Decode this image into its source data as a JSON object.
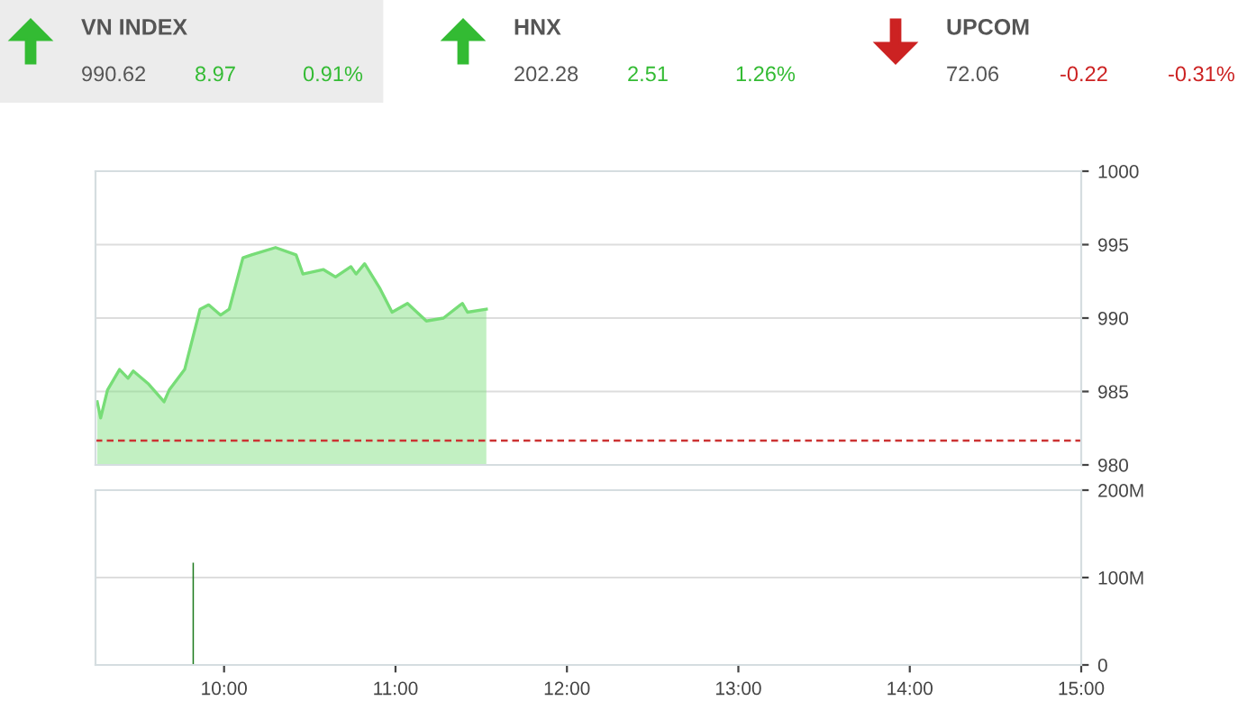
{
  "chart_data": [
    {
      "type": "other",
      "annotations": [
        "VN INDEX",
        "990.62",
        "8.97",
        "0.91%",
        "HNX",
        "202.28",
        "2.51",
        "1.26%",
        "UPCOM",
        "72.06",
        "-0.22",
        "-0.31%"
      ],
      "colors": [
        "#555555",
        "#555555",
        "#33bb33",
        "#33bb33",
        "#555555",
        "#555555",
        "#33bb33",
        "#33bb33",
        "#555555",
        "#555555",
        "#cc2222",
        "#cc2222"
      ]
    },
    {
      "type": "area",
      "tick_labels": "y",
      "grid": "y",
      "xlim": [
        9.25,
        15
      ],
      "ylim": [
        980,
        1000
      ],
      "yticks": [
        980,
        985,
        990,
        995,
        1000
      ],
      "ref_lines": [
        {
          "axis": "y",
          "value": 981.65,
          "color": "#cc3333",
          "line_style": "dashed"
        }
      ],
      "series": [
        {
          "color": "#77dd77",
          "x": [
            9.26,
            9.28,
            9.32,
            9.39,
            9.44,
            9.47,
            9.56,
            9.65,
            9.68,
            9.77,
            9.86,
            9.91,
            9.98,
            10.03,
            10.11,
            10.16,
            10.3,
            10.42,
            10.46,
            10.58,
            10.65,
            10.74,
            10.77,
            10.82,
            10.91,
            10.98,
            11.07,
            11.18,
            11.28,
            11.39,
            11.42,
            11.53
          ],
          "values": [
            984.3,
            983.2,
            985.1,
            986.5,
            985.9,
            986.4,
            985.5,
            984.3,
            985.1,
            986.5,
            990.6,
            990.9,
            990.2,
            990.6,
            994.1,
            994.3,
            994.8,
            994.3,
            993.0,
            993.3,
            992.8,
            993.5,
            993.0,
            993.7,
            992.0,
            990.4,
            991.0,
            989.8,
            990.0,
            991.0,
            990.4,
            990.6
          ]
        }
      ]
    },
    {
      "type": "bar",
      "grid": "y",
      "xlim": [
        9.25,
        15
      ],
      "ylim": [
        0,
        200
      ],
      "yticks": [
        0,
        {
          "value": 100,
          "label": "100M"
        },
        {
          "value": 200,
          "label": "200M"
        }
      ],
      "xticks": [
        {
          "value": 10,
          "label": "10:00"
        },
        {
          "value": 11,
          "label": "11:00"
        },
        {
          "value": 12,
          "label": "12:00"
        },
        {
          "value": 13,
          "label": "13:00"
        },
        {
          "value": 14,
          "label": "14:00"
        },
        {
          "value": 15,
          "label": "15:00"
        }
      ],
      "series": [
        {
          "color": "#1e7a1e",
          "x": [
            9.82
          ],
          "values": [
            117
          ]
        }
      ]
    }
  ]
}
